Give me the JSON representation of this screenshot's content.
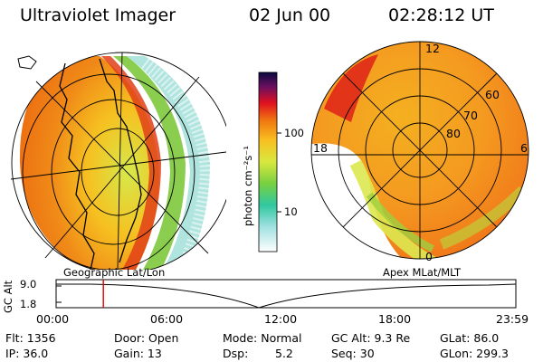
{
  "header": {
    "instrument": "Ultraviolet Imager",
    "date": "02 Jun 00",
    "time": "02:28:12 UT"
  },
  "colorbar": {
    "unit_label": "photon cm⁻²s⁻¹",
    "ticks": [
      "100",
      "10"
    ],
    "scale": "log"
  },
  "left_panel": {
    "caption": "Geographic Lat/Lon"
  },
  "right_panel": {
    "caption": "Apex MLat/MLT",
    "mlt_labels": [
      "12",
      "18",
      "6",
      "0"
    ],
    "mlat_labels": [
      "60",
      "70",
      "80"
    ]
  },
  "altitude_plot": {
    "axis_label": "GC Alt",
    "y_ticks": [
      "9.0",
      "1.8"
    ],
    "x_ticks": [
      "00:00",
      "06:00",
      "12:00",
      "18:00",
      "23:59"
    ],
    "marker_time": "02:28",
    "marker_color": "#e00000"
  },
  "status": {
    "flt": "Flt: 1356",
    "ip": "IP: 36.0",
    "door": "Door: Open",
    "gain": "Gain: 13",
    "mode": "Mode: Normal",
    "dsp_label": "Dsp:",
    "dsp_value": "5.2",
    "gc_alt": "GC Alt: 9.3 Re",
    "seq": "Seq: 30",
    "glat": "GLat: 86.0",
    "glon": "GLon: 299.3"
  }
}
